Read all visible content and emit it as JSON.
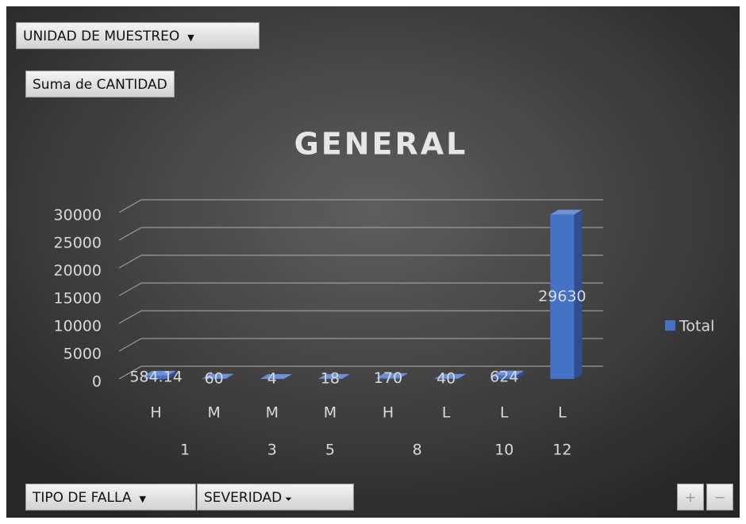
{
  "buttons": {
    "filter": "UNIDAD DE MUESTREO",
    "value_field": "Suma de CANTIDAD",
    "axis_fields": [
      "TIPO DE FALLA",
      "SEVERIDAD"
    ],
    "expand": "+",
    "collapse": "−"
  },
  "chart_data": {
    "type": "bar3d",
    "title": "GENERAL",
    "categories": [
      "H",
      "M",
      "M",
      "M",
      "H",
      "L",
      "L",
      "L"
    ],
    "groups": [
      {
        "label": "1",
        "count": 2
      },
      {
        "label": "3",
        "count": 1
      },
      {
        "label": "5",
        "count": 1
      },
      {
        "label": "8",
        "count": 2
      },
      {
        "label": "10",
        "count": 1
      },
      {
        "label": "12",
        "count": 1
      }
    ],
    "series": [
      {
        "name": "Total",
        "color": "#4472c4",
        "values": [
          584.14,
          60,
          4,
          18,
          170,
          40,
          624,
          29630
        ]
      }
    ],
    "ylim": [
      0,
      30000
    ],
    "yticks": [
      0,
      5000,
      10000,
      15000,
      20000,
      25000,
      30000
    ],
    "grid": true,
    "legend": "right"
  }
}
